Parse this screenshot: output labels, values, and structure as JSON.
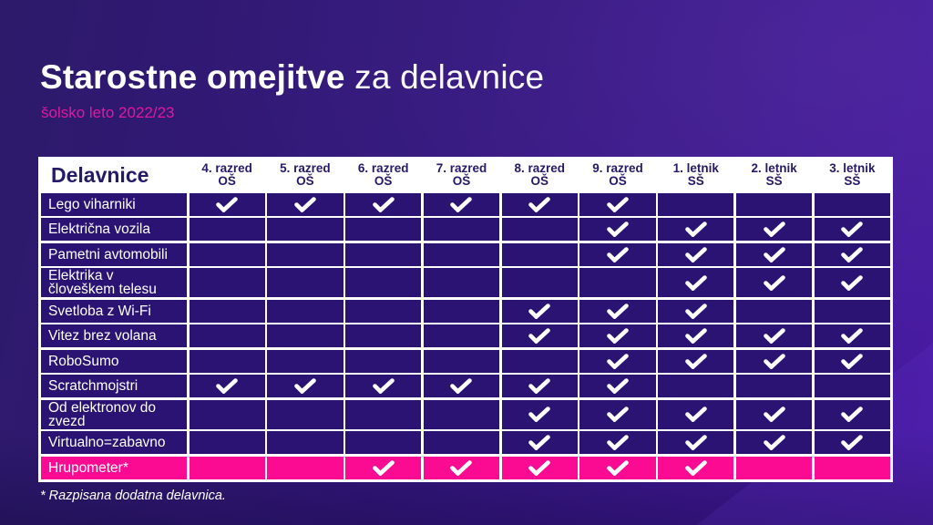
{
  "title": {
    "bold": "Starostne omejitve",
    "regular": " za delavnice"
  },
  "subtitle": "šolsko leto 2022/23",
  "table": {
    "corner_label": "Delavnice",
    "columns": [
      {
        "grade": "4. razred",
        "level": "OŠ"
      },
      {
        "grade": "5. razred",
        "level": "OŠ"
      },
      {
        "grade": "6. razred",
        "level": "OŠ"
      },
      {
        "grade": "7. razred",
        "level": "OŠ"
      },
      {
        "grade": "8. razred",
        "level": "OŠ"
      },
      {
        "grade": "9. razred",
        "level": "OŠ"
      },
      {
        "grade": "1. letnik",
        "level": "SŠ"
      },
      {
        "grade": "2. letnik",
        "level": "SŠ"
      },
      {
        "grade": "3. letnik",
        "level": "SŠ"
      }
    ],
    "rows": [
      {
        "label": "Lego viharniki",
        "checks": [
          1,
          1,
          1,
          1,
          1,
          1,
          0,
          0,
          0
        ],
        "highlight": false
      },
      {
        "label": "Električna vozila",
        "checks": [
          0,
          0,
          0,
          0,
          0,
          1,
          1,
          1,
          1
        ],
        "highlight": false
      },
      {
        "label": "Pametni avtomobili",
        "checks": [
          0,
          0,
          0,
          0,
          0,
          1,
          1,
          1,
          1
        ],
        "highlight": false
      },
      {
        "label": "Elektrika v človeškem telesu",
        "checks": [
          0,
          0,
          0,
          0,
          0,
          0,
          1,
          1,
          1
        ],
        "highlight": false
      },
      {
        "label": "Svetloba z Wi-Fi",
        "checks": [
          0,
          0,
          0,
          0,
          1,
          1,
          1,
          0,
          0
        ],
        "highlight": false
      },
      {
        "label": "Vitez brez volana",
        "checks": [
          0,
          0,
          0,
          0,
          1,
          1,
          1,
          1,
          1
        ],
        "highlight": false
      },
      {
        "label": "RoboSumo",
        "checks": [
          0,
          0,
          0,
          0,
          0,
          1,
          1,
          1,
          1
        ],
        "highlight": false
      },
      {
        "label": "Scratchmojstri",
        "checks": [
          1,
          1,
          1,
          1,
          1,
          1,
          0,
          0,
          0
        ],
        "highlight": false
      },
      {
        "label": "Od elektronov do zvezd",
        "checks": [
          0,
          0,
          0,
          0,
          1,
          1,
          1,
          1,
          1
        ],
        "highlight": false
      },
      {
        "label": "Virtualno=zabavno",
        "checks": [
          0,
          0,
          0,
          0,
          1,
          1,
          1,
          1,
          1
        ],
        "highlight": false
      },
      {
        "label": "Hrupometer*",
        "checks": [
          0,
          0,
          1,
          1,
          1,
          1,
          1,
          0,
          0
        ],
        "highlight": true
      }
    ],
    "check_icon": "checkmark-icon"
  },
  "footnote": "* Razpisana dodatna delavnica.",
  "colors": {
    "accent-pink": "#e2189e",
    "accent-pink-row": "#fb0a92",
    "cell-indigo": "#2a1372",
    "header-navy": "#251a68",
    "border-col": "#ffffff"
  }
}
